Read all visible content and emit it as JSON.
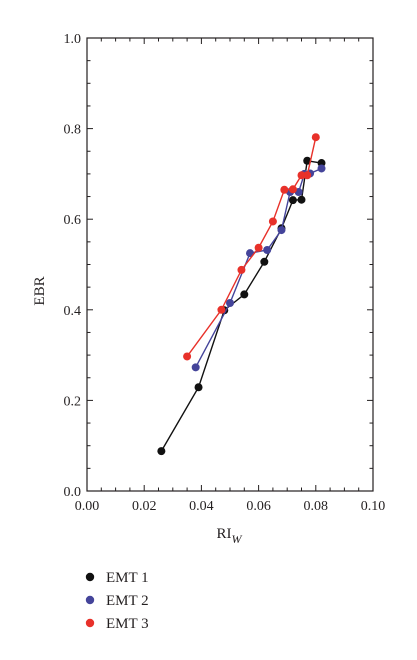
{
  "chart_data": {
    "type": "scatter",
    "xlabel": "RI",
    "xlabel_sub": "W",
    "ylabel": "EBR",
    "xlim": [
      0.0,
      0.1
    ],
    "ylim": [
      0.0,
      1.0
    ],
    "x_ticks": [
      "0.00",
      "0.02",
      "0.04",
      "0.06",
      "0.08",
      "0.10"
    ],
    "y_ticks": [
      "0.0",
      "0.2",
      "0.4",
      "0.6",
      "0.8",
      "1.0"
    ],
    "x_tick_values": [
      0.0,
      0.02,
      0.04,
      0.06,
      0.08,
      0.1
    ],
    "y_tick_values": [
      0.0,
      0.2,
      0.4,
      0.6,
      0.8,
      1.0
    ],
    "grid": false,
    "connected": true,
    "legend_position": "bottom-left-outside",
    "series": [
      {
        "name": "EMT 1",
        "color": "#111111",
        "points": [
          [
            0.026,
            0.088
          ],
          [
            0.039,
            0.229
          ],
          [
            0.048,
            0.399
          ],
          [
            0.055,
            0.434
          ],
          [
            0.062,
            0.506
          ],
          [
            0.068,
            0.58
          ],
          [
            0.072,
            0.642
          ],
          [
            0.075,
            0.643
          ],
          [
            0.077,
            0.729
          ],
          [
            0.082,
            0.724
          ]
        ]
      },
      {
        "name": "EMT 2",
        "color": "#44449a",
        "points": [
          [
            0.038,
            0.273
          ],
          [
            0.05,
            0.415
          ],
          [
            0.057,
            0.525
          ],
          [
            0.063,
            0.532
          ],
          [
            0.068,
            0.576
          ],
          [
            0.071,
            0.66
          ],
          [
            0.074,
            0.66
          ],
          [
            0.076,
            0.7
          ],
          [
            0.078,
            0.701
          ],
          [
            0.082,
            0.712
          ]
        ]
      },
      {
        "name": "EMT 3",
        "color": "#e8312a",
        "points": [
          [
            0.035,
            0.297
          ],
          [
            0.047,
            0.4
          ],
          [
            0.054,
            0.488
          ],
          [
            0.06,
            0.537
          ],
          [
            0.065,
            0.595
          ],
          [
            0.069,
            0.665
          ],
          [
            0.072,
            0.666
          ],
          [
            0.075,
            0.697
          ],
          [
            0.077,
            0.697
          ],
          [
            0.08,
            0.781
          ]
        ]
      }
    ]
  }
}
